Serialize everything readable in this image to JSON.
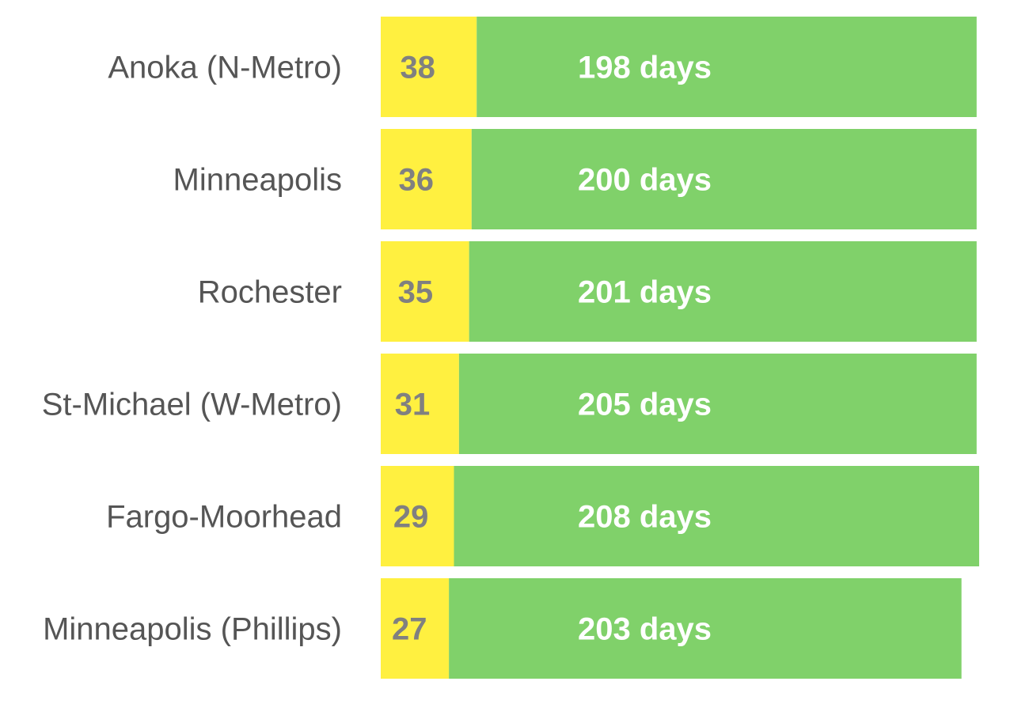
{
  "colors": {
    "yellow": "#FFF040",
    "green": "#80D16A",
    "category_text": "#555555",
    "yellow_text": "#808080",
    "green_text": "#FFFFFF"
  },
  "chart_data": {
    "type": "bar",
    "orientation": "horizontal",
    "stacked": true,
    "title": "",
    "xlabel": "",
    "ylabel": "",
    "grid": false,
    "legend": "none",
    "categories": [
      "Anoka (N-Metro)",
      "Minneapolis",
      "Rochester",
      "St-Michael (W-Metro)",
      "Fargo-Moorhead",
      "Minneapolis (Phillips)"
    ],
    "series": [
      {
        "color": "#FFF040",
        "values": [
          38,
          36,
          35,
          31,
          29,
          27
        ],
        "labels": [
          "38",
          "36",
          "35",
          "31",
          "29",
          "27"
        ]
      },
      {
        "color": "#80D16A",
        "values": [
          198,
          200,
          201,
          205,
          208,
          203
        ],
        "labels": [
          "198 days",
          "200 days",
          "201 days",
          "205 days",
          "208 days",
          "203 days"
        ]
      }
    ],
    "xlim": [
      0,
      237
    ]
  }
}
